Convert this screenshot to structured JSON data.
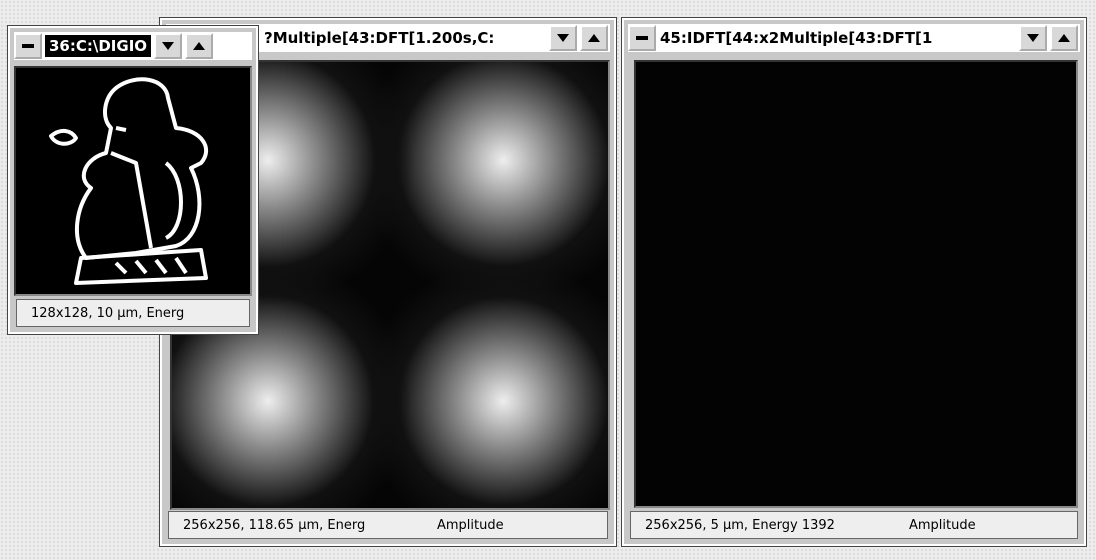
{
  "windows": [
    {
      "title": "?Multiple[43:DFT[1.200s,C:",
      "status": [
        "256x256, 118.65 µm, Energ",
        "Amplitude"
      ]
    },
    {
      "title": "45:IDFT[44:x2Multiple[43:DFT[1",
      "status": [
        "256x256, 5 µm, Energy 1392",
        "Amplitude"
      ]
    },
    {
      "title": "36:C:\\DIGIO",
      "status": [
        "128x128, 10 µm, Energ"
      ]
    }
  ]
}
